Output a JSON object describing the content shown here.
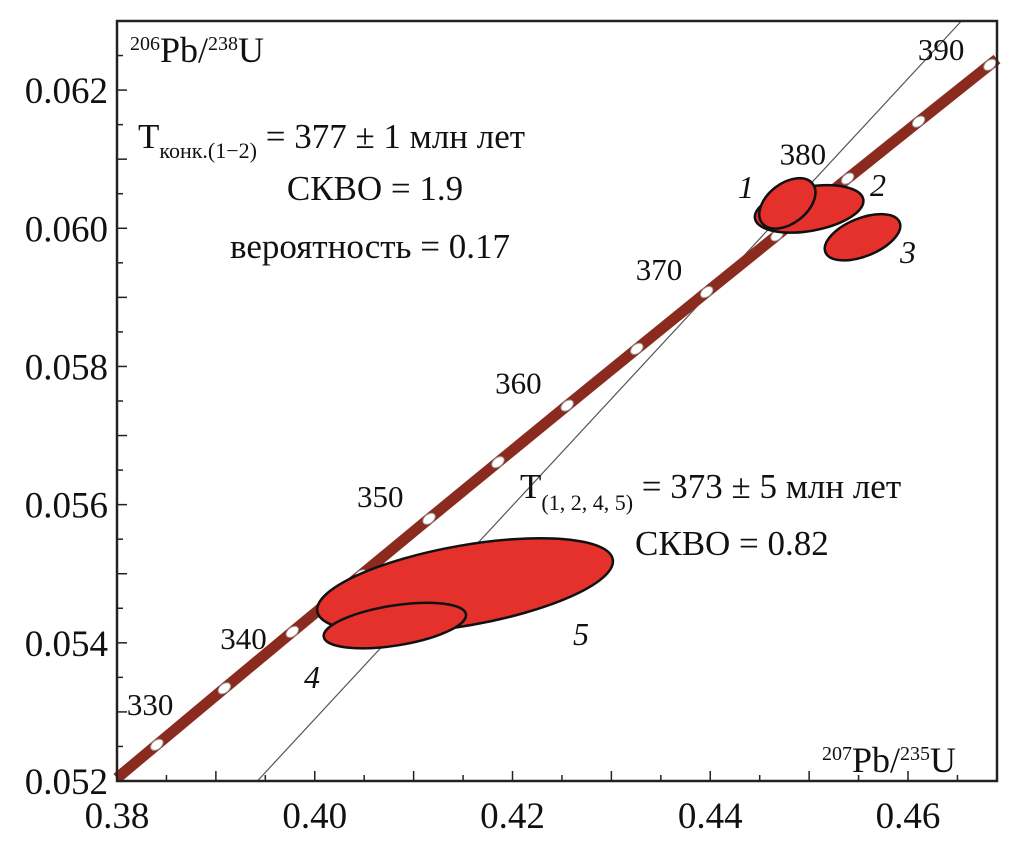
{
  "chart_data": {
    "type": "scatter",
    "subtype": "U-Pb concordia diagram with error ellipses",
    "xlabel": {
      "sup1": "207",
      "main1": "Pb/",
      "sup2": "235",
      "main2": "U"
    },
    "ylabel": {
      "sup1": "206",
      "main1": "Pb/",
      "sup2": "238",
      "main2": "U"
    },
    "xlim": [
      0.38,
      0.469
    ],
    "ylim": [
      0.052,
      0.063
    ],
    "x_ticks": [
      "0.38",
      "0.40",
      "0.42",
      "0.44",
      "0.46"
    ],
    "y_ticks": [
      "0.052",
      "0.054",
      "0.056",
      "0.058",
      "0.060",
      "0.062"
    ],
    "grid": false,
    "colors": {
      "concordia": "#8b2a1e",
      "ellipse_fill": "#e4312b",
      "discordia": "#555555"
    },
    "concordia_marks": [
      {
        "age": 330,
        "x": 0.38403,
        "y": 0.052524,
        "label": "330"
      },
      {
        "age": 335,
        "x": 0.39086,
        "y": 0.053341
      },
      {
        "age": 340,
        "x": 0.39773,
        "y": 0.054158,
        "label": "340"
      },
      {
        "age": 345,
        "x": 0.40463,
        "y": 0.054976
      },
      {
        "age": 350,
        "x": 0.41156,
        "y": 0.055795,
        "label": "350"
      },
      {
        "age": 355,
        "x": 0.41853,
        "y": 0.056614
      },
      {
        "age": 360,
        "x": 0.42553,
        "y": 0.057434,
        "label": "360"
      },
      {
        "age": 365,
        "x": 0.43257,
        "y": 0.058255
      },
      {
        "age": 370,
        "x": 0.43964,
        "y": 0.059076,
        "label": "370"
      },
      {
        "age": 375,
        "x": 0.44675,
        "y": 0.059897
      },
      {
        "age": 380,
        "x": 0.45389,
        "y": 0.06072,
        "label": "380"
      },
      {
        "age": 385,
        "x": 0.46107,
        "y": 0.061543
      },
      {
        "age": 390,
        "x": 0.46828,
        "y": 0.062366,
        "label": "390"
      }
    ],
    "discordia": {
      "x": [
        0.3942,
        0.4654
      ],
      "y": [
        0.052,
        0.063
      ]
    },
    "ellipses": [
      {
        "label": "5",
        "x": 0.4152,
        "y": 0.05483
      },
      {
        "label": "4",
        "x": 0.4081,
        "y": 0.05425
      },
      {
        "label": "2",
        "x": 0.45,
        "y": 0.06028
      },
      {
        "label": "1",
        "x": 0.4478,
        "y": 0.06036
      },
      {
        "label": "3",
        "x": 0.4554,
        "y": 0.05987
      }
    ],
    "annotations": {
      "concordia_age": {
        "T": "T",
        "sub": "конк.(1−2)",
        "rest": " = 377 ± 1 млн лет",
        "mswd": "СКВО = 1.9",
        "prob": "вероятность = 0.17"
      },
      "discordia_age": {
        "T": "T",
        "sub": "(1, 2, 4, 5)",
        "rest": " = 373 ± 5 млн лет",
        "mswd": "СКВО = 0.82"
      }
    }
  }
}
